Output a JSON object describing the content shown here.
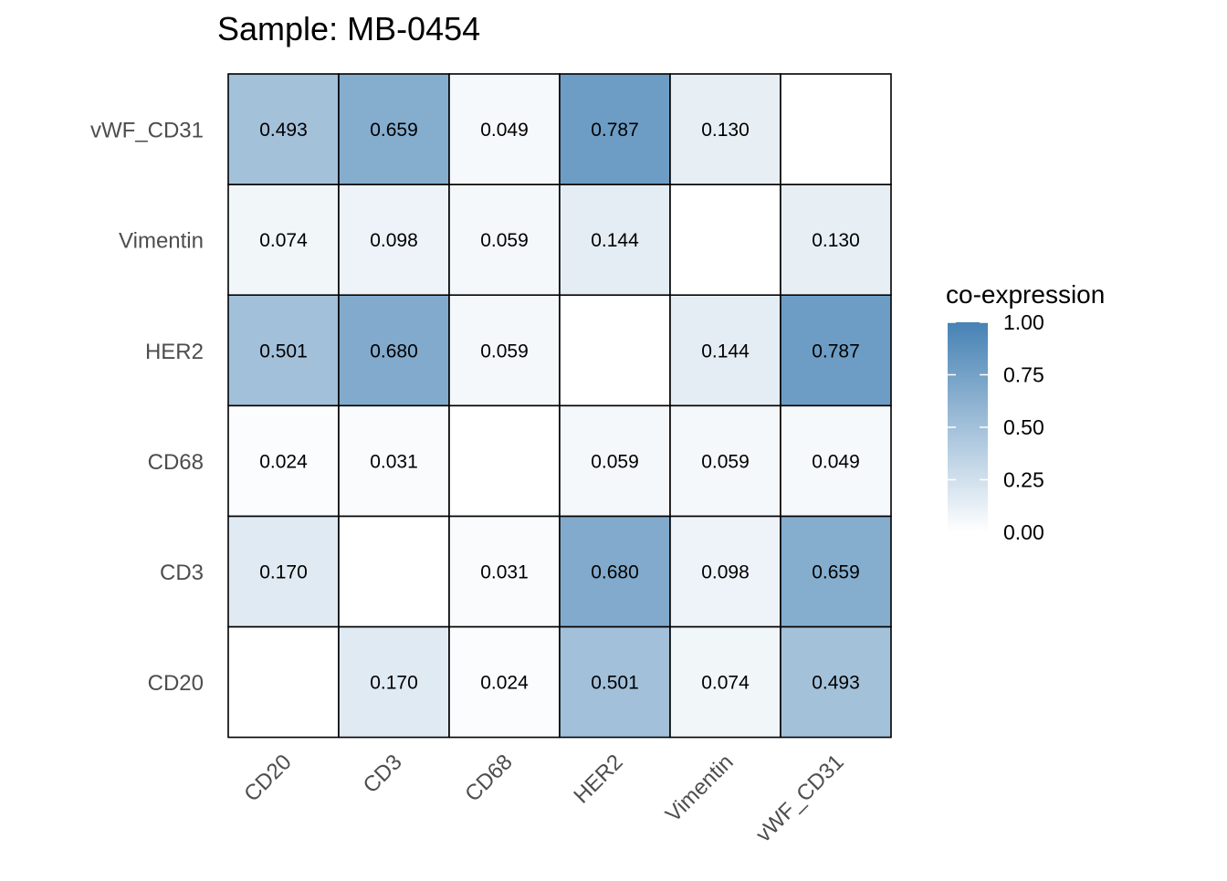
{
  "chart_data": {
    "type": "heatmap",
    "title": "Sample: MB-0454",
    "x_categories": [
      "CD20",
      "CD3",
      "CD68",
      "HER2",
      "Vimentin",
      "vWF_CD31"
    ],
    "y_categories": [
      "CD20",
      "CD3",
      "CD68",
      "HER2",
      "Vimentin",
      "vWF_CD31"
    ],
    "values": [
      [
        null,
        0.17,
        0.024,
        0.501,
        0.074,
        0.493
      ],
      [
        0.17,
        null,
        0.031,
        0.68,
        0.098,
        0.659
      ],
      [
        0.024,
        0.031,
        null,
        0.059,
        0.059,
        0.049
      ],
      [
        0.501,
        0.68,
        0.059,
        null,
        0.144,
        0.787
      ],
      [
        0.074,
        0.098,
        0.059,
        0.144,
        null,
        0.13
      ],
      [
        0.493,
        0.659,
        0.049,
        0.787,
        0.13,
        null
      ]
    ],
    "labels": [
      [
        null,
        "0.170",
        "0.024",
        "0.501",
        "0.074",
        "0.493"
      ],
      [
        "0.170",
        null,
        "0.031",
        "0.680",
        "0.098",
        "0.659"
      ],
      [
        "0.024",
        "0.031",
        null,
        "0.059",
        "0.059",
        "0.049"
      ],
      [
        "0.501",
        "0.680",
        "0.059",
        null,
        "0.144",
        "0.787"
      ],
      [
        "0.074",
        "0.098",
        "0.059",
        "0.144",
        null,
        "0.130"
      ],
      [
        "0.493",
        "0.659",
        "0.049",
        "0.787",
        "0.130",
        null
      ]
    ],
    "xlabel": "",
    "ylabel": "",
    "legend": {
      "title": "co-expression",
      "position": "right",
      "range": [
        0,
        1
      ],
      "ticks": [
        1.0,
        0.75,
        0.5,
        0.25,
        0.0
      ],
      "tick_labels": [
        "1.00",
        "0.75",
        "0.50",
        "0.25",
        "0.00"
      ]
    },
    "colors": {
      "low": "#ffffff",
      "high": "#4682b4",
      "cell_border": "#000000"
    },
    "grid": false
  }
}
